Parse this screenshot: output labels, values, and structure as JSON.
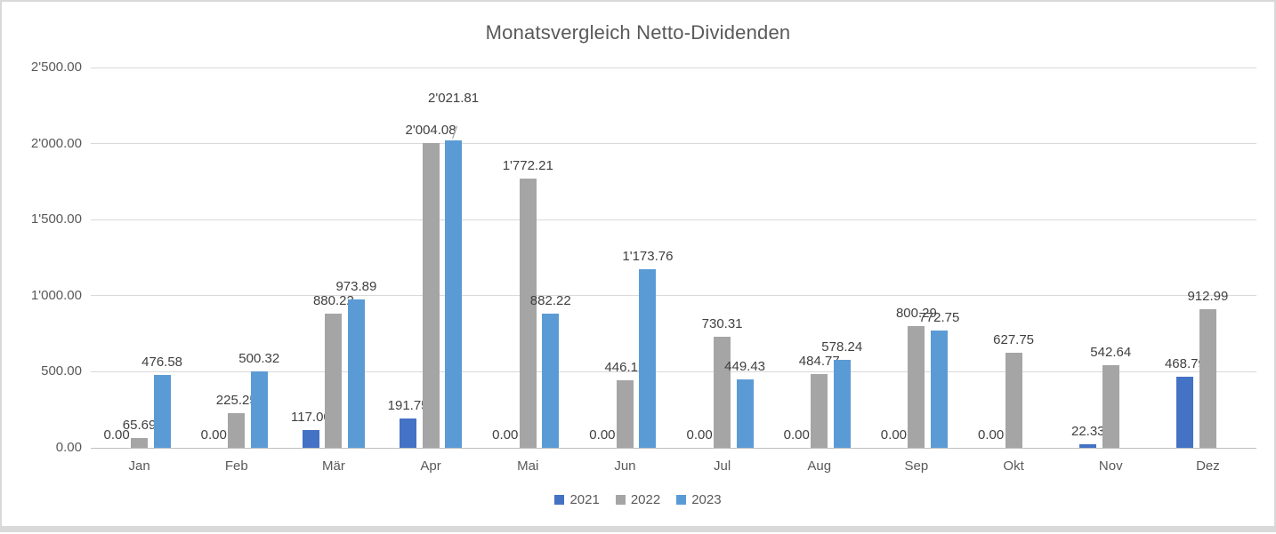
{
  "chart_data": {
    "type": "bar",
    "title": "Monatsvergleich Netto-Dividenden",
    "categories": [
      "Jan",
      "Feb",
      "Mär",
      "Apr",
      "Mai",
      "Jun",
      "Jul",
      "Aug",
      "Sep",
      "Okt",
      "Nov",
      "Dez"
    ],
    "series": [
      {
        "name": "2021",
        "color": "#4472C4",
        "values": [
          0,
          0,
          117.0,
          191.75,
          0,
          0,
          0,
          0,
          0,
          0,
          22.33,
          468.79
        ]
      },
      {
        "name": "2022",
        "color": "#A5A5A5",
        "values": [
          65.69,
          225.25,
          880.22,
          2004.08,
          1772.21,
          446.12,
          730.31,
          484.77,
          800.29,
          627.75,
          542.64,
          912.99
        ]
      },
      {
        "name": "2023",
        "color": "#5B9BD5",
        "values": [
          476.58,
          500.32,
          973.89,
          2021.81,
          882.22,
          1173.76,
          449.43,
          578.24,
          772.75,
          null,
          null,
          null
        ]
      }
    ],
    "data_labels_visible": true,
    "number_format": "thousands apostrophe, 2 decimals",
    "y_axis": {
      "min": 0,
      "max": 2500,
      "step": 500,
      "tick_labels": [
        "0.00",
        "500.00",
        "1'000.00",
        "1'500.00",
        "2'000.00",
        "2'500.00"
      ]
    },
    "x_axis": {
      "tick_labels": [
        "Jan",
        "Feb",
        "Mär",
        "Apr",
        "Mai",
        "Jun",
        "Jul",
        "Aug",
        "Sep",
        "Okt",
        "Nov",
        "Dez"
      ]
    },
    "legend": {
      "position": "bottom",
      "entries": [
        "2021",
        "2022",
        "2023"
      ]
    },
    "gridlines": true,
    "annotations": [
      {
        "series": "2023",
        "category": "Apr",
        "text": "2'021.81",
        "offset_y": -33,
        "leader_line": true
      }
    ]
  },
  "colors": {
    "title_text": "#595959",
    "axis_text": "#595959",
    "data_label_text": "#404040",
    "gridline": "#D9D9D9",
    "baseline": "#BFBFBF",
    "frame_border": "#D9D9D9",
    "leader_line": "#A6A6A6",
    "background": "#FFFFFF"
  }
}
